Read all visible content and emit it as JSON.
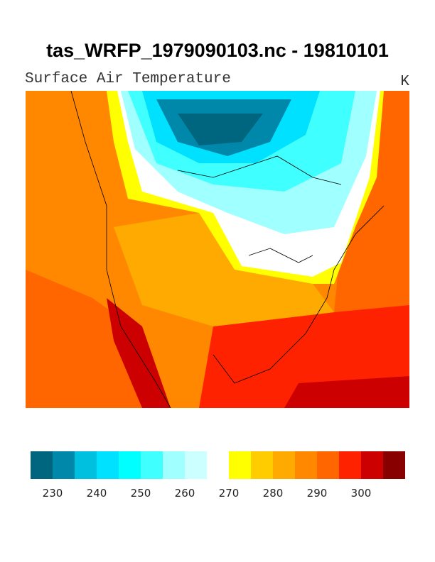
{
  "header": {
    "title": "tas_WRFP_1979090103.nc - 19810101",
    "left_string": "Surface Air Temperature",
    "right_string": "K"
  },
  "colorbar": {
    "colors": [
      "#006680",
      "#0088aa",
      "#00c0e0",
      "#00e0ff",
      "#00ffff",
      "#40ffff",
      "#a0ffff",
      "#ccffff",
      "#ffffff",
      "#ffff00",
      "#ffcc00",
      "#ffaa00",
      "#ff8800",
      "#ff6600",
      "#ff2200",
      "#cc0000",
      "#880000"
    ],
    "labels": [
      230,
      240,
      250,
      260,
      270,
      280,
      290,
      300
    ]
  }
}
